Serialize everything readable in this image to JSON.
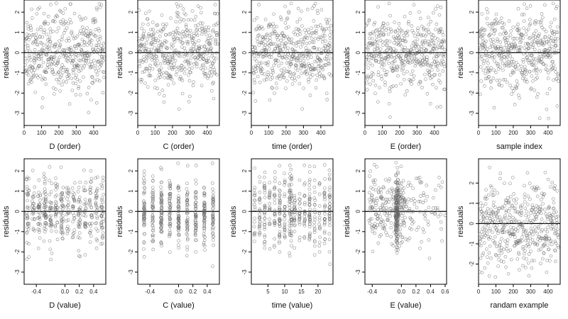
{
  "chart_data": [
    {
      "type": "scatter",
      "xlabel": "D (order)",
      "ylabel": "residuals",
      "xlim": [
        0,
        470
      ],
      "ylim": [
        -3.6,
        2.6
      ],
      "xticks": [
        0,
        100,
        200,
        300,
        400
      ],
      "xtick_labels": [
        "0",
        "100",
        "200",
        "300",
        "400"
      ],
      "yticks": [
        -3,
        -2,
        -1,
        0,
        1,
        2
      ],
      "ytick_labels": [
        "-3",
        "-2",
        "-1",
        "0",
        "1",
        "2"
      ],
      "reference_line_y": 0,
      "n_points": 460,
      "seed": 11,
      "style": "order",
      "noise": 0.95
    },
    {
      "type": "scatter",
      "xlabel": "C (order)",
      "ylabel": "residuals",
      "xlim": [
        0,
        470
      ],
      "ylim": [
        -3.6,
        2.6
      ],
      "xticks": [
        0,
        100,
        200,
        300,
        400
      ],
      "xtick_labels": [
        "0",
        "100",
        "200",
        "300",
        "400"
      ],
      "yticks": [
        -3,
        -2,
        -1,
        0,
        1,
        2
      ],
      "ytick_labels": [
        "-3",
        "-2",
        "-1",
        "0",
        "1",
        "2"
      ],
      "reference_line_y": 0,
      "n_points": 460,
      "seed": 23,
      "style": "order",
      "noise": 0.95
    },
    {
      "type": "scatter",
      "xlabel": "time (order)",
      "ylabel": "residuals",
      "xlim": [
        0,
        470
      ],
      "ylim": [
        -3.6,
        2.6
      ],
      "xticks": [
        0,
        100,
        200,
        300,
        400
      ],
      "xtick_labels": [
        "0",
        "100",
        "200",
        "300",
        "400"
      ],
      "yticks": [
        -3,
        -2,
        -1,
        0,
        1,
        2
      ],
      "ytick_labels": [
        "-3",
        "-2",
        "-1",
        "0",
        "1",
        "2"
      ],
      "reference_line_y": 0,
      "n_points": 460,
      "seed": 37,
      "style": "order",
      "noise": 0.95
    },
    {
      "type": "scatter",
      "xlabel": "E (order)",
      "ylabel": "residuals",
      "xlim": [
        0,
        470
      ],
      "ylim": [
        -3.6,
        2.6
      ],
      "xticks": [
        0,
        100,
        200,
        300,
        400
      ],
      "xtick_labels": [
        "0",
        "100",
        "200",
        "300",
        "400"
      ],
      "yticks": [
        -3,
        -2,
        -1,
        0,
        1,
        2
      ],
      "ytick_labels": [
        "-3",
        "-2",
        "-1",
        "0",
        "1",
        "2"
      ],
      "reference_line_y": 0,
      "n_points": 460,
      "seed": 41,
      "style": "order",
      "noise": 0.95
    },
    {
      "type": "scatter",
      "xlabel": "sample index",
      "ylabel": "residuals",
      "xlim": [
        0,
        470
      ],
      "ylim": [
        -3.6,
        2.6
      ],
      "xticks": [
        0,
        100,
        200,
        300,
        400
      ],
      "xtick_labels": [
        "0",
        "100",
        "200",
        "300",
        "400"
      ],
      "yticks": [
        -3,
        -2,
        -1,
        0,
        1,
        2
      ],
      "ytick_labels": [
        "-3",
        "-2",
        "-1",
        "0",
        "1",
        "2"
      ],
      "reference_line_y": 0,
      "n_points": 460,
      "seed": 53,
      "style": "order",
      "noise": 0.95
    },
    {
      "type": "scatter",
      "xlabel": "D (value)",
      "ylabel": "residuals",
      "xlim": [
        -0.57,
        0.57
      ],
      "ylim": [
        -3.6,
        2.6
      ],
      "xticks": [
        -0.4,
        0.0,
        0.2,
        0.4
      ],
      "xtick_labels": [
        "-0.4",
        "0.0",
        "0.2",
        "0.4"
      ],
      "yticks": [
        -3,
        -2,
        -1,
        0,
        1,
        2
      ],
      "ytick_labels": [
        "-3",
        "-2",
        "-1",
        "0",
        "1",
        "2"
      ],
      "reference_line_y": 0,
      "n_points": 460,
      "seed": 61,
      "style": "columns",
      "column_x": [
        -0.52,
        -0.44,
        -0.36,
        -0.28,
        -0.2,
        -0.12,
        -0.04,
        0.04,
        0.12,
        0.2,
        0.28,
        0.36,
        0.44,
        0.52
      ],
      "jitter": 0.018,
      "noise": 0.9
    },
    {
      "type": "scatter",
      "xlabel": "C (value)",
      "ylabel": "residuals",
      "xlim": [
        -0.57,
        0.57
      ],
      "ylim": [
        -3.6,
        2.6
      ],
      "xticks": [
        -0.4,
        0.0,
        0.2,
        0.4
      ],
      "xtick_labels": [
        "-0.4",
        "0.0",
        "0.2",
        "0.4"
      ],
      "yticks": [
        -3,
        -2,
        -1,
        0,
        1,
        2
      ],
      "ytick_labels": [
        "-3",
        "-2",
        "-1",
        "0",
        "1",
        "2"
      ],
      "reference_line_y": 0,
      "n_points": 460,
      "seed": 71,
      "style": "columns",
      "column_x": [
        -0.48,
        -0.36,
        -0.24,
        -0.12,
        0.0,
        0.12,
        0.24,
        0.36,
        0.48
      ],
      "jitter": 0.008,
      "noise": 0.9
    },
    {
      "type": "scatter",
      "xlabel": "time (value)",
      "ylabel": "residuals",
      "xlim": [
        0,
        24.5
      ],
      "ylim": [
        -3.6,
        2.6
      ],
      "xticks": [
        5,
        10,
        15,
        20
      ],
      "xtick_labels": [
        "5",
        "10",
        "15",
        "20"
      ],
      "yticks": [
        -3,
        -2,
        -1,
        0,
        1,
        2
      ],
      "ytick_labels": [
        "-3",
        "-2",
        "-1",
        "0",
        "1",
        "2"
      ],
      "reference_line_y": 0,
      "n_points": 460,
      "seed": 83,
      "style": "columns",
      "column_x": [
        1,
        2.5,
        4,
        5.5,
        7,
        8.5,
        10,
        11.5,
        12,
        13,
        14.5,
        16,
        17.5,
        19,
        20.5,
        22,
        23.5
      ],
      "jitter": 0.12,
      "noise": 0.95
    },
    {
      "type": "scatter",
      "xlabel": "E (value)",
      "ylabel": "residuals",
      "xlim": [
        -0.5,
        0.62
      ],
      "ylim": [
        -3.6,
        2.6
      ],
      "xticks": [
        -0.4,
        0.0,
        0.2,
        0.4,
        0.6
      ],
      "xtick_labels": [
        "-0.4",
        "0.0",
        "0.2",
        "0.4",
        "0.6"
      ],
      "yticks": [
        -3,
        -2,
        -1,
        0,
        1,
        2
      ],
      "ytick_labels": [
        "-3",
        "-2",
        "-1",
        "0",
        "1",
        "2"
      ],
      "reference_line_y": 0,
      "n_points": 460,
      "seed": 97,
      "style": "skewed",
      "noise": 0.9
    },
    {
      "type": "scatter",
      "xlabel": "randam example",
      "ylabel": "residuals",
      "xlim": [
        0,
        470
      ],
      "ylim": [
        -3.0,
        3.2
      ],
      "xticks": [
        0,
        100,
        200,
        300,
        400
      ],
      "xtick_labels": [
        "0",
        "100",
        "200",
        "300",
        "400"
      ],
      "yticks": [
        -2,
        -1,
        0,
        1,
        2
      ],
      "ytick_labels": [
        "-2",
        "-1",
        "0",
        "1",
        "2"
      ],
      "reference_line_y": 0,
      "n_points": 460,
      "seed": 107,
      "style": "order",
      "noise": 1.05
    }
  ],
  "colors": {
    "point": "#666666",
    "axis": "#000000",
    "reference_line": "#000000"
  }
}
